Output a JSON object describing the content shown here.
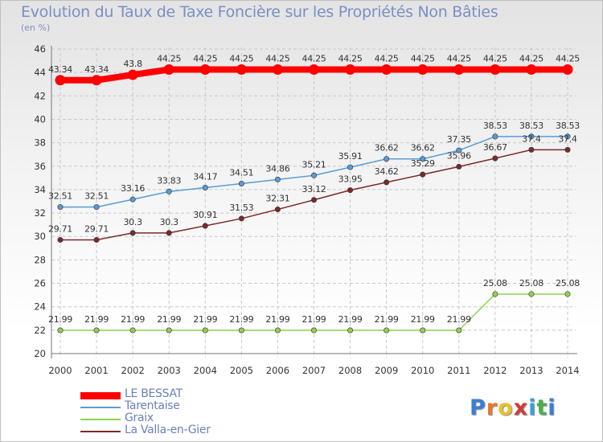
{
  "header": {
    "title": "Evolution du Taux de Taxe Foncière sur les Propriétés Non Bâties",
    "unit": "(en %)"
  },
  "logo": {
    "letters": [
      "P",
      "r",
      "o",
      "x",
      "i",
      "t",
      "i"
    ],
    "colors": [
      "#3a7fd4",
      "#e8782a",
      "#e8c22a",
      "#d43a3a",
      "#3a9fd4",
      "#4ab04a",
      "#3a7fd4"
    ]
  },
  "chart_data": {
    "type": "line",
    "title": "Evolution du Taux de Taxe Foncière sur les Propriétés Non Bâties",
    "ylabel": "(en %)",
    "xlabel": "",
    "ylim": [
      20,
      46
    ],
    "ytick_step": 2,
    "grid": true,
    "legend_position": "bottom-left",
    "x": [
      "2000",
      "2001",
      "2002",
      "2003",
      "2004",
      "2005",
      "2006",
      "2007",
      "2008",
      "2009",
      "2010",
      "2011",
      "2012",
      "2013",
      "2014"
    ],
    "series": [
      {
        "name": "LE BESSAT",
        "color": "#ff0000",
        "width": 8,
        "values": [
          43.34,
          43.34,
          43.8,
          44.25,
          44.25,
          44.25,
          44.25,
          44.25,
          44.25,
          44.25,
          44.25,
          44.25,
          44.25,
          44.25,
          44.25
        ],
        "labels": [
          "43.34",
          "43.34",
          "43.8",
          "44.25",
          "44.25",
          "44.25",
          "44.25",
          "44.25",
          "44.25",
          "44.25",
          "44.25",
          "44.25",
          "44.25",
          "44.25",
          "44.25"
        ]
      },
      {
        "name": "Tarentaise",
        "color": "#5b9bd5",
        "width": 1.5,
        "values": [
          32.51,
          32.51,
          33.16,
          33.83,
          34.17,
          34.51,
          34.86,
          35.21,
          35.91,
          36.62,
          36.62,
          37.35,
          38.53,
          38.53,
          38.53
        ],
        "labels": [
          "32.51",
          "32.51",
          "33.16",
          "33.83",
          "34.17",
          "34.51",
          "34.86",
          "35.21",
          "35.91",
          "36.62",
          "36.62",
          "37.35",
          "38.53",
          "38.53",
          "38.53"
        ]
      },
      {
        "name": "Graix",
        "color": "#8fd14f",
        "width": 1.5,
        "values": [
          21.99,
          21.99,
          21.99,
          21.99,
          21.99,
          21.99,
          21.99,
          21.99,
          21.99,
          21.99,
          21.99,
          21.99,
          25.08,
          25.08,
          25.08
        ],
        "labels": [
          "21.99",
          "21.99",
          "21.99",
          "21.99",
          "21.99",
          "21.99",
          "21.99",
          "21.99",
          "21.99",
          "21.99",
          "21.99",
          "21.99",
          "25.08",
          "25.08",
          "25.08"
        ]
      },
      {
        "name": "La Valla-en-Gier",
        "color": "#7a2a2a",
        "width": 1.5,
        "values": [
          29.71,
          29.71,
          30.3,
          30.3,
          30.91,
          31.53,
          32.31,
          33.12,
          33.95,
          34.62,
          35.29,
          35.96,
          36.67,
          37.4,
          37.4
        ],
        "labels": [
          "29.71",
          "29.71",
          "30.3",
          "30.3",
          "30.91",
          "31.53",
          "32.31",
          "33.12",
          "33.95",
          "34.62",
          "35.29",
          "35.96",
          "36.67",
          "37.4",
          "37.4"
        ]
      }
    ]
  }
}
